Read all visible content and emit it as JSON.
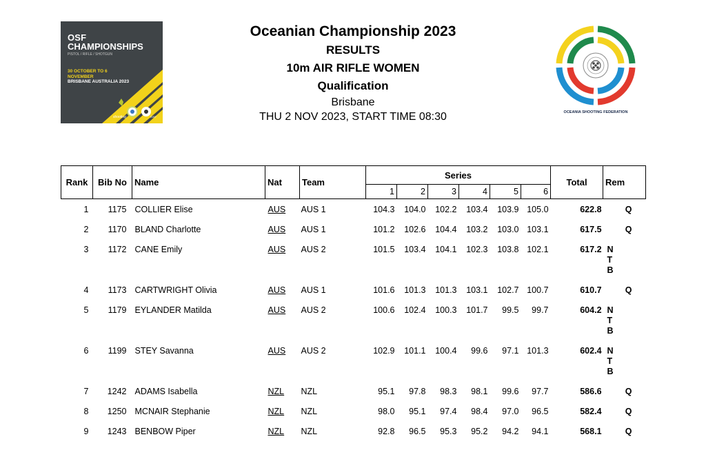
{
  "logo_left": {
    "line1": "OSF",
    "line2": "CHAMPIONSHIPS",
    "line3": "PISTOL / RIFLE / SHOTGUN",
    "dates": "30 OCTOBER TO 6 NOVEMBER",
    "place": "BRISBANE AUSTRALIA 2023",
    "sport": "shooting",
    "issf": "ISSF"
  },
  "logo_right": {
    "caption": "OCEANIA SHOOTING FEDERATION"
  },
  "header": {
    "title": "Oceanian Championship 2023",
    "results": "RESULTS",
    "event": "10m AIR RIFLE WOMEN",
    "phase": "Qualification",
    "city": "Brisbane",
    "date": "THU 2 NOV 2023, START TIME 08:30"
  },
  "columns": {
    "rank": "Rank",
    "bib": "Bib No",
    "name": "Name",
    "nat": "Nat",
    "team": "Team",
    "series": "Series",
    "series_nums": [
      "1",
      "2",
      "3",
      "4",
      "5",
      "6"
    ],
    "total": "Total",
    "rem": "Rem"
  },
  "rows": [
    {
      "rank": "1",
      "bib": "1175",
      "name": "COLLIER Elise",
      "nat": "AUS",
      "team": "AUS 1",
      "series": [
        "104.3",
        "104.0",
        "102.2",
        "103.4",
        "103.9",
        "105.0"
      ],
      "total": "622.8",
      "rem": "Q"
    },
    {
      "rank": "2",
      "bib": "1170",
      "name": "BLAND Charlotte",
      "nat": "AUS",
      "team": "AUS 1",
      "series": [
        "101.2",
        "102.6",
        "104.4",
        "103.2",
        "103.0",
        "103.1"
      ],
      "total": "617.5",
      "rem": "Q"
    },
    {
      "rank": "3",
      "bib": "1172",
      "name": "CANE Emily",
      "nat": "AUS",
      "team": "AUS 2",
      "series": [
        "101.5",
        "103.4",
        "104.1",
        "102.3",
        "103.8",
        "102.1"
      ],
      "total": "617.2",
      "rem": "N T B"
    },
    {
      "rank": "4",
      "bib": "1173",
      "name": "CARTWRIGHT Olivia",
      "nat": "AUS",
      "team": "AUS 1",
      "series": [
        "101.6",
        "101.3",
        "101.3",
        "103.1",
        "102.7",
        "100.7"
      ],
      "total": "610.7",
      "rem": "Q"
    },
    {
      "rank": "5",
      "bib": "1179",
      "name": "EYLANDER Matilda",
      "nat": "AUS",
      "team": "AUS 2",
      "series": [
        "100.6",
        "102.4",
        "100.3",
        "101.7",
        "99.5",
        "99.7"
      ],
      "total": "604.2",
      "rem": "N T B"
    },
    {
      "rank": "6",
      "bib": "1199",
      "name": "STEY Savanna",
      "nat": "AUS",
      "team": "AUS 2",
      "series": [
        "102.9",
        "101.1",
        "100.4",
        "99.6",
        "97.1",
        "101.3"
      ],
      "total": "602.4",
      "rem": "N T B"
    },
    {
      "rank": "7",
      "bib": "1242",
      "name": "ADAMS Isabella",
      "nat": "NZL",
      "team": "NZL",
      "series": [
        "95.1",
        "97.8",
        "98.3",
        "98.1",
        "99.6",
        "97.7"
      ],
      "total": "586.6",
      "rem": "Q"
    },
    {
      "rank": "8",
      "bib": "1250",
      "name": "MCNAIR Stephanie",
      "nat": "NZL",
      "team": "NZL",
      "series": [
        "98.0",
        "95.1",
        "97.4",
        "98.4",
        "97.0",
        "96.5"
      ],
      "total": "582.4",
      "rem": "Q"
    },
    {
      "rank": "9",
      "bib": "1243",
      "name": "BENBOW Piper",
      "nat": "NZL",
      "team": "NZL",
      "series": [
        "92.8",
        "96.5",
        "95.3",
        "95.2",
        "94.2",
        "94.1"
      ],
      "total": "568.1",
      "rem": "Q"
    }
  ]
}
